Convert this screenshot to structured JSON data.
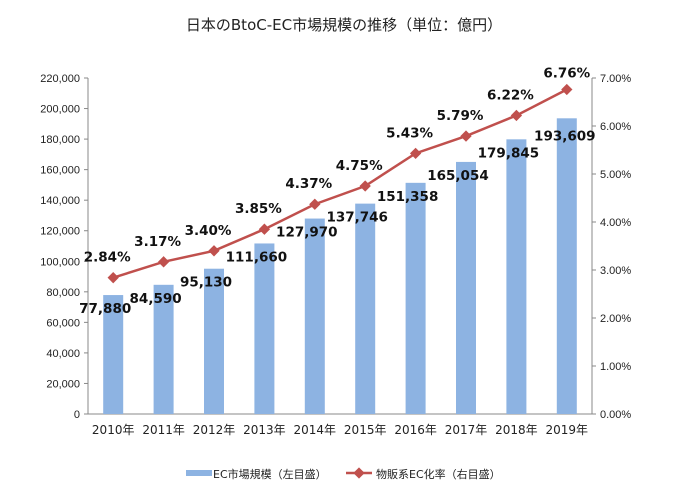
{
  "chart_data": {
    "type": "bar+line",
    "title": "日本のBtoC-EC市場規模の推移（単位：億円）",
    "categories": [
      "2010年",
      "2011年",
      "2012年",
      "2013年",
      "2014年",
      "2015年",
      "2016年",
      "2017年",
      "2018年",
      "2019年"
    ],
    "series": [
      {
        "name": "EC市場規模（左目盛）",
        "type": "bar",
        "axis": "left",
        "color": "#8db3e2",
        "values": [
          77880,
          84590,
          95130,
          111660,
          127970,
          137746,
          151358,
          165054,
          179845,
          193609
        ],
        "labels": [
          "77,880",
          "84,590",
          "95,130",
          "111,660",
          "127,970",
          "137,746",
          "151,358",
          "165,054",
          "179,845",
          "193,609"
        ]
      },
      {
        "name": "物販系EC化率（右目盛）",
        "type": "line",
        "axis": "right",
        "color": "#c0504d",
        "values": [
          2.84,
          3.17,
          3.4,
          3.85,
          4.37,
          4.75,
          5.43,
          5.79,
          6.22,
          6.76
        ],
        "labels": [
          "2.84%",
          "3.17%",
          "3.40%",
          "3.85%",
          "4.37%",
          "4.75%",
          "5.43%",
          "5.79%",
          "6.22%",
          "6.76%"
        ]
      }
    ],
    "highlight_colors": {
      "bar_last_label": "#1f3864",
      "line_last_label": "#c00000"
    },
    "yleft": {
      "lim": [
        0,
        220000
      ],
      "ticks": [
        "0",
        "20,000",
        "40,000",
        "60,000",
        "80,000",
        "100,000",
        "120,000",
        "140,000",
        "160,000",
        "180,000",
        "200,000",
        "220,000"
      ]
    },
    "yright": {
      "lim": [
        0,
        7
      ],
      "ticks": [
        "0.00%",
        "1.00%",
        "2.00%",
        "3.00%",
        "4.00%",
        "5.00%",
        "6.00%",
        "7.00%"
      ]
    },
    "grid": false,
    "legend": "bottom"
  }
}
